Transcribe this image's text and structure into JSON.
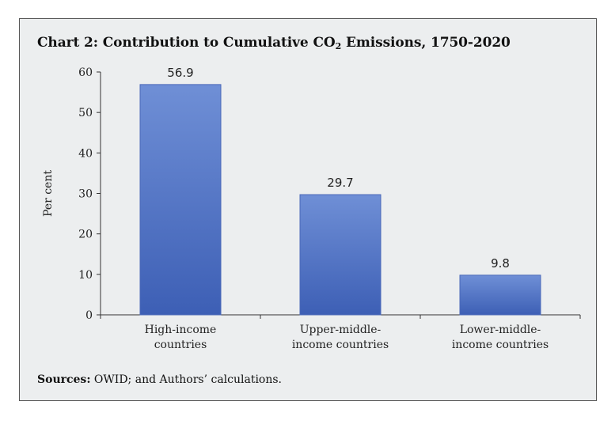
{
  "figure": {
    "title_prefix": "Chart 2: Contribution to Cumulative CO",
    "title_subscript": "2",
    "title_suffix": " Emissions, 1750-2020",
    "source_label": "Sources:",
    "source_text": " OWID; and Authors’ calculations."
  },
  "chart_data": {
    "type": "bar",
    "title": "Chart 2: Contribution to Cumulative CO2 Emissions, 1750-2020",
    "categories": [
      [
        "High-income",
        "countries"
      ],
      [
        "Upper-middle-",
        "income countries"
      ],
      [
        "Lower-middle-",
        "income countries"
      ]
    ],
    "values": [
      56.9,
      29.7,
      9.8
    ],
    "value_labels": [
      "56.9",
      "29.7",
      "9.8"
    ],
    "xlabel": "",
    "ylabel": "Per cent",
    "ylim": [
      0,
      60
    ],
    "yticks": [
      0,
      10,
      20,
      30,
      40,
      50,
      60
    ],
    "grid": false,
    "legend": "none",
    "colors": {
      "bar_top": "#6f8fd6",
      "bar_bottom": "#3d5fb5",
      "bar_edge": "#4a68b8",
      "axis": "#333333",
      "background": "#eceeef"
    }
  }
}
